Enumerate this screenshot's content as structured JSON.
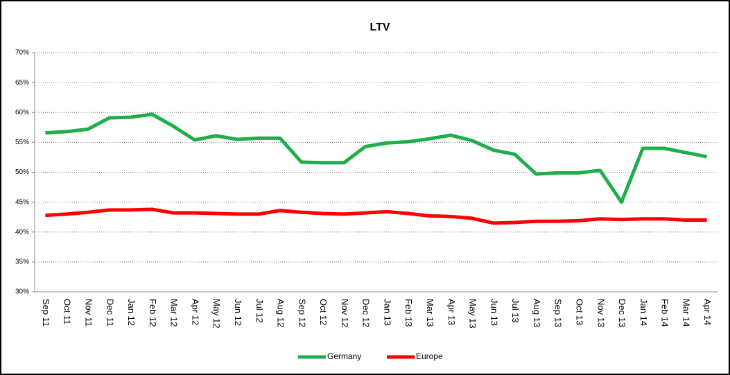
{
  "chart_data": {
    "type": "line",
    "title": "LTV",
    "categories": [
      "Sep 11",
      "Oct 11",
      "Nov 11",
      "Dec 11",
      "Jan 12",
      "Feb 12",
      "Mar 12",
      "Apr 12",
      "May 12",
      "Jun 12",
      "Jul 12",
      "Aug 12",
      "Sep 12",
      "Oct 12",
      "Nov 12",
      "Dec 12",
      "Jan 13",
      "Feb 13",
      "Mar 13",
      "Apr 13",
      "May 13",
      "Jun 13",
      "Jul 13",
      "Aug 13",
      "Sep 13",
      "Oct 13",
      "Nov 13",
      "Dec 13",
      "Jan 14",
      "Feb 14",
      "Mar 14",
      "Apr 14"
    ],
    "series": [
      {
        "name": "Germany",
        "color": "#1fae4b",
        "values": [
          56.6,
          56.8,
          57.2,
          59.1,
          59.2,
          59.7,
          57.7,
          55.4,
          56.1,
          55.5,
          55.7,
          55.7,
          51.7,
          51.6,
          51.6,
          54.3,
          54.9,
          55.1,
          55.6,
          56.2,
          55.3,
          53.7,
          53.0,
          49.7,
          49.9,
          49.9,
          50.3,
          45.0,
          54.0,
          54.0,
          53.3,
          52.6
        ]
      },
      {
        "name": "Europe",
        "color": "#ff0000",
        "values": [
          42.8,
          43.0,
          43.3,
          43.7,
          43.7,
          43.8,
          43.2,
          43.2,
          43.1,
          43.0,
          43.0,
          43.6,
          43.3,
          43.1,
          43.0,
          43.2,
          43.4,
          43.1,
          42.7,
          42.6,
          42.3,
          41.5,
          41.6,
          41.8,
          41.8,
          41.9,
          42.2,
          42.1,
          42.2,
          42.2,
          42.0,
          42.0
        ]
      }
    ],
    "ylim": [
      30,
      70
    ],
    "yticks": [
      {
        "value": 30,
        "label": "30%"
      },
      {
        "value": 35,
        "label": "35%"
      },
      {
        "value": 40,
        "label": "40%"
      },
      {
        "value": 45,
        "label": "45%"
      },
      {
        "value": 50,
        "label": "50%"
      },
      {
        "value": 55,
        "label": "55%"
      },
      {
        "value": 60,
        "label": "60%"
      },
      {
        "value": 65,
        "label": "65%"
      },
      {
        "value": 70,
        "label": "70%"
      }
    ],
    "grid": true,
    "legend": "bottom"
  }
}
